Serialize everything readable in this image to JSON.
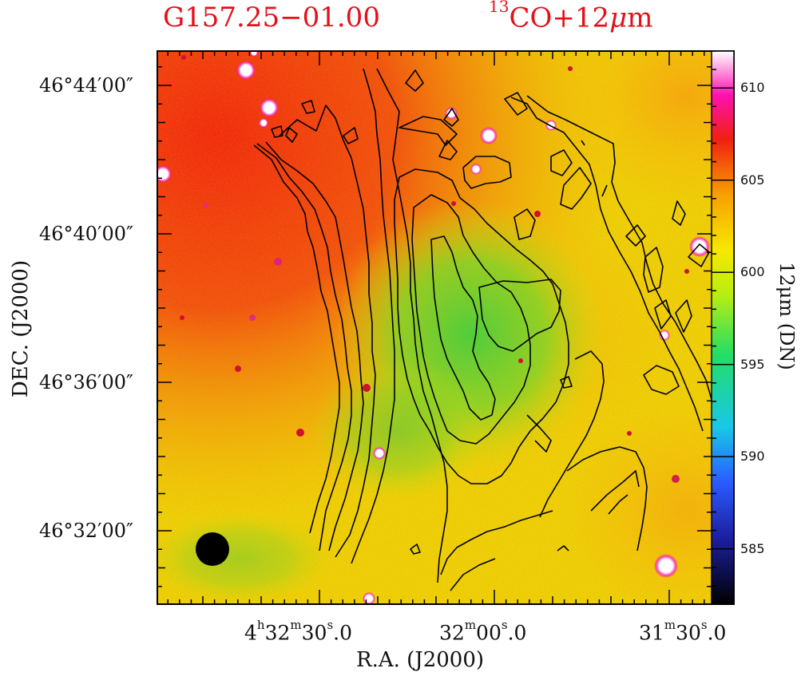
{
  "titles": {
    "left": "G157.25−01.00",
    "right_sup": "13",
    "right_main": "CO+12",
    "right_mu": "μ",
    "right_end": "m"
  },
  "chart_data": {
    "type": "heatmap",
    "description_units": "12μm intensity image with 13CO contour overlay",
    "xlabel": "R.A. (J2000)",
    "ylabel": "DEC. (J2000)",
    "colorbar_label": "12μm (DN)",
    "colorbar_range": [
      582,
      612
    ],
    "colorbar_ticks": [
      "585",
      "590",
      "595",
      "600",
      "605",
      "610"
    ],
    "colorbar_tick_values": [
      585,
      590,
      595,
      600,
      605,
      610
    ],
    "x_ticks": [
      {
        "h": "4",
        "hsup": "h",
        "m": "32",
        "msup": "m",
        "s": "30",
        "ssup": "s",
        "frac": ".0",
        "value_sec": 16350
      },
      {
        "m": "32",
        "msup": "m",
        "s": "00",
        "ssup": "s",
        "frac": ".0",
        "value_sec": 16320
      },
      {
        "m": "31",
        "msup": "m",
        "s": "30",
        "ssup": "s",
        "frac": ".0",
        "value_sec": 16290
      }
    ],
    "y_ticks": [
      "46°44′00″",
      "46°40′00″",
      "46°36′00″",
      "46°32′00″"
    ],
    "y_tick_values_arcmin": [
      44,
      40,
      36,
      32
    ],
    "beam": "filled circle, lower-left"
  },
  "colors": {
    "title": "#e5101a",
    "contour": "#000000",
    "background_field": "#f7e000",
    "cloud_core": "#36d83a",
    "bright_region": "#f22a12"
  }
}
